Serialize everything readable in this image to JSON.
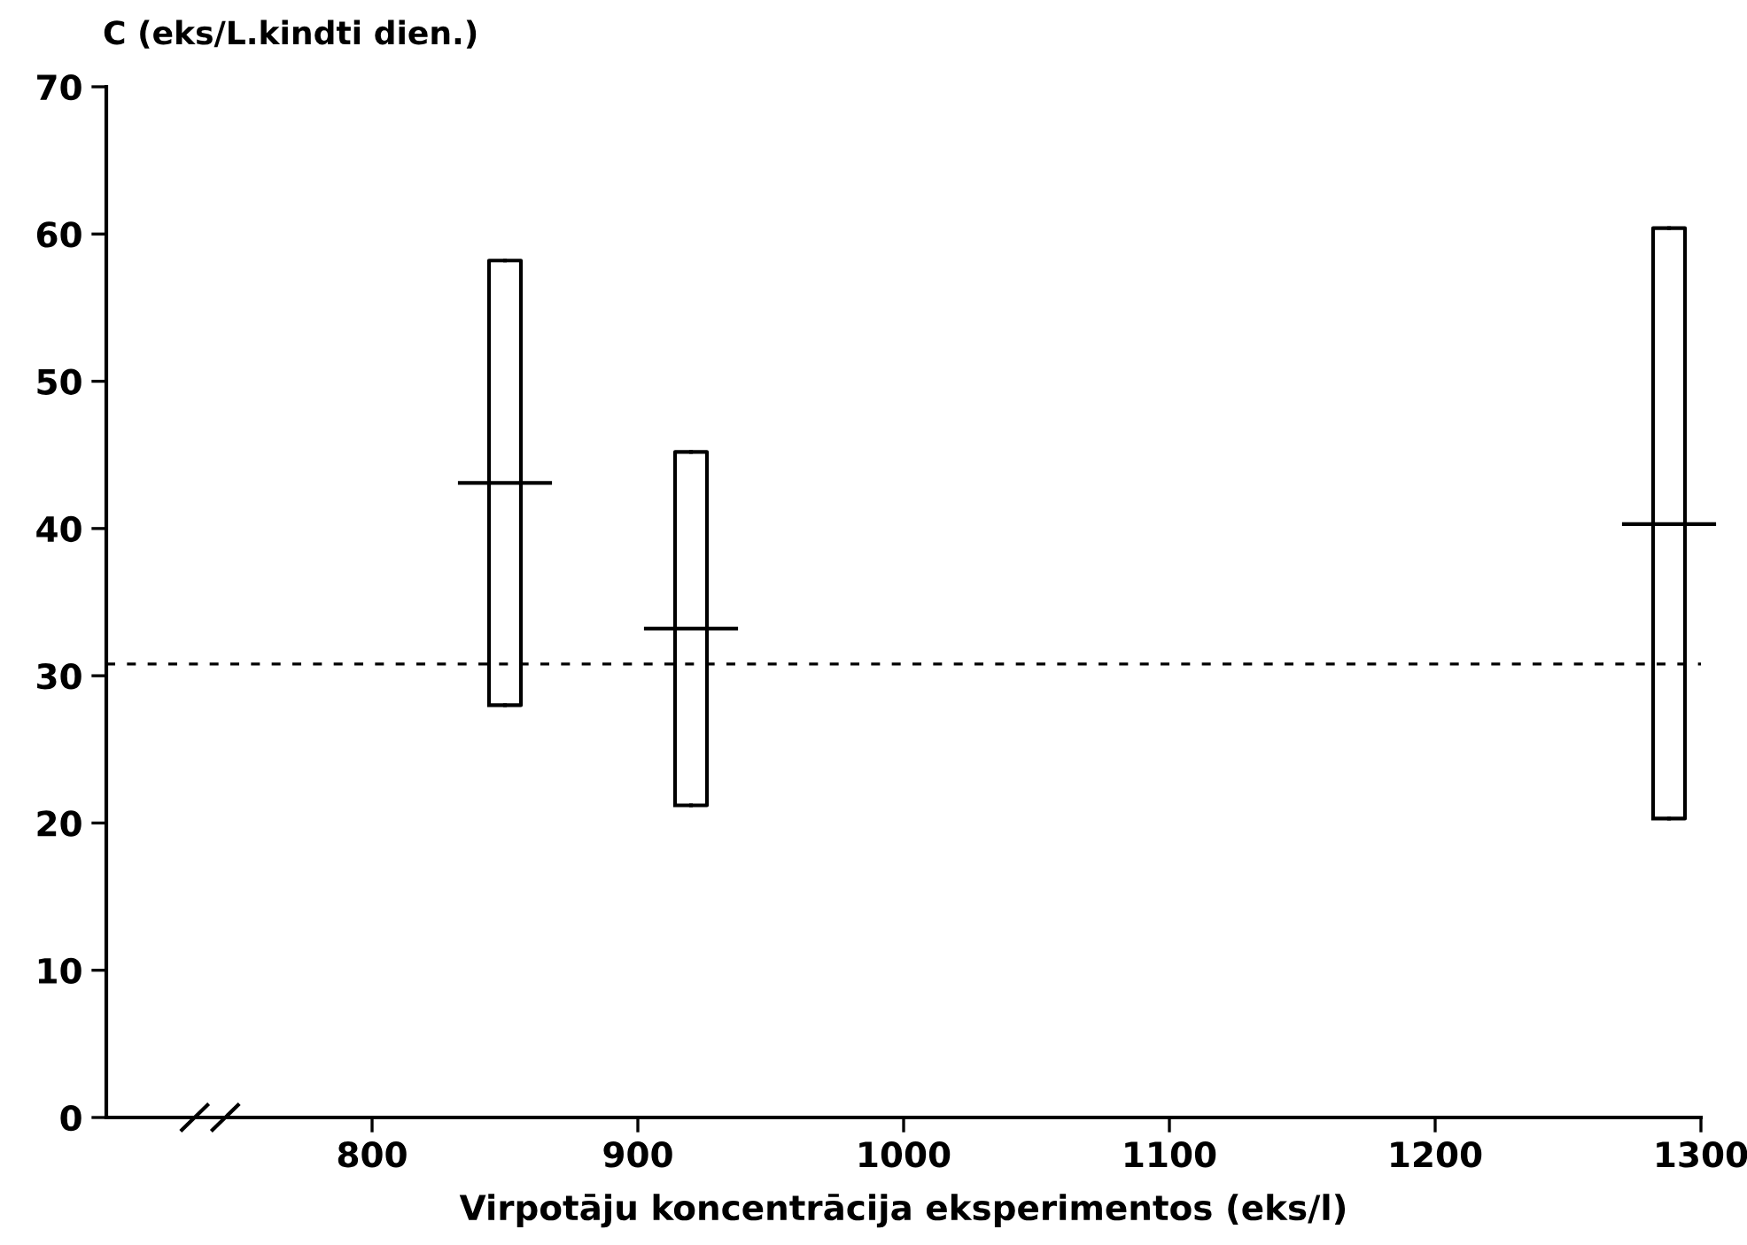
{
  "chart_data": {
    "type": "box",
    "x": [
      850,
      920,
      1288
    ],
    "boxes": [
      {
        "low": 28.0,
        "q1": 28.0,
        "median": 43.1,
        "q3": 58.2,
        "high": 58.2
      },
      {
        "low": 21.2,
        "q1": 21.2,
        "median": 33.2,
        "q3": 45.2,
        "high": 45.2
      },
      {
        "low": 20.3,
        "q1": 20.3,
        "median": 40.3,
        "q3": 60.4,
        "high": 60.4
      }
    ],
    "color": "#000000",
    "xlabel": "Virpotāju koncentrācija eksperimentos (eks/l)",
    "ylabel": "C (eks/L.kindti dien.)",
    "xlim": [
      700,
      1300
    ],
    "xticks": [
      800,
      900,
      1000,
      1100,
      1200,
      1300
    ],
    "ylim": [
      0,
      70
    ],
    "yticks": [
      0,
      10,
      20,
      30,
      40,
      50,
      60,
      70
    ],
    "ref_lines": [
      {
        "axis": "y",
        "value": 30.8,
        "line_style": "dotted",
        "color": "#000000"
      }
    ],
    "grid": false
  }
}
